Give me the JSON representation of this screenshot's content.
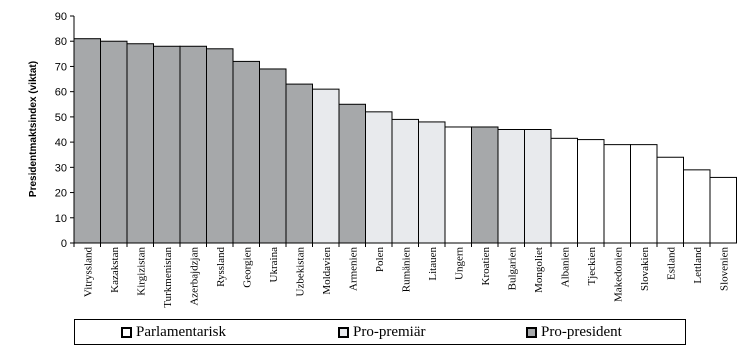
{
  "chart_data": {
    "type": "bar",
    "ylabel": "Presidentmaktsindex (viktat)",
    "ylim": [
      0,
      90
    ],
    "yticks": [
      0,
      10,
      20,
      30,
      40,
      50,
      60,
      70,
      80,
      90
    ],
    "categories": [
      "Vitryssland",
      "Kazakstan",
      "Kirgizistan",
      "Turkmenistan",
      "Azerbajdzjan",
      "Ryssland",
      "Georgien",
      "Ukraina",
      "Uzbekistan",
      "Moldavien",
      "Armenien",
      "Polen",
      "Rumänien",
      "Litauen",
      "Ungern",
      "Kroatien",
      "Bulgarien",
      "Mongoliet",
      "Albanien",
      "Tjeckien",
      "Makedonien",
      "Slovakien",
      "Estland",
      "Lettland",
      "Slovenien"
    ],
    "values": [
      81,
      80,
      79,
      78,
      78,
      77,
      72,
      69,
      63,
      61,
      55,
      52,
      49,
      48,
      46,
      46,
      45,
      45,
      41.5,
      41,
      39,
      39,
      34,
      29,
      26
    ],
    "groups": [
      "Pro-president",
      "Pro-president",
      "Pro-president",
      "Pro-president",
      "Pro-president",
      "Pro-president",
      "Pro-president",
      "Pro-president",
      "Pro-president",
      "Pro-premiär",
      "Pro-president",
      "Pro-premiär",
      "Pro-premiär",
      "Pro-premiär",
      "Parlamentarisk",
      "Pro-president",
      "Pro-premiär",
      "Pro-premiär",
      "Parlamentarisk",
      "Parlamentarisk",
      "Parlamentarisk",
      "Parlamentarisk",
      "Parlamentarisk",
      "Parlamentarisk",
      "Parlamentarisk"
    ],
    "legend": [
      {
        "name": "Parlamentarisk",
        "color": "#ffffff"
      },
      {
        "name": "Pro-premiär",
        "color": "#e8eaed"
      },
      {
        "name": "Pro-president",
        "color": "#a6a8aa"
      }
    ],
    "legend_position": "bottom",
    "grid": false
  }
}
